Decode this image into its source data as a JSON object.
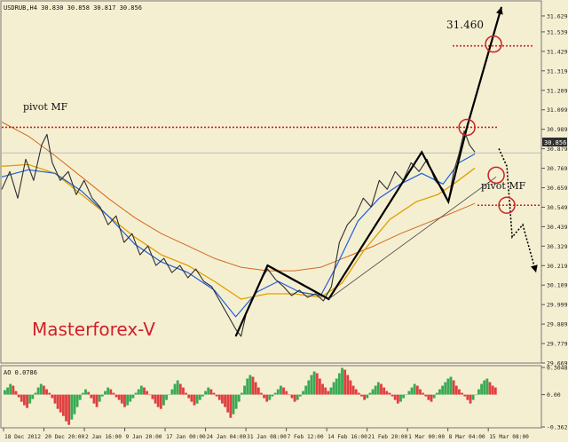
{
  "header": {
    "symbol_label": "USDRUB,H4  30.830 30.858 30.817 30.856"
  },
  "watermark": {
    "text": "Masterforex-V",
    "color": "#d0202a"
  },
  "colors": {
    "background": "#f5efd2",
    "price_line": "#2e2e2e",
    "ma_fast": "#1e5fd8",
    "ma_mid": "#e0a000",
    "ma_slow": "#d2691e",
    "pivot": "#cc2222",
    "ao_up": "#3aaa55",
    "ao_down": "#e04040"
  },
  "chart_data": [
    {
      "type": "line",
      "panel": "price",
      "y_axis_ticks": [
        "31.629",
        "31.539",
        "31.429",
        "31.319",
        "31.209",
        "31.099",
        "30.989",
        "30.879",
        "30.769",
        "30.659",
        "30.549",
        "30.439",
        "30.329",
        "30.219",
        "30.109",
        "29.999",
        "29.889",
        "29.779",
        "29.669"
      ],
      "ylim": [
        29.669,
        31.704
      ],
      "current_price": "30.856",
      "x_axis_ticks": [
        "18 Dec 2012",
        "20 Dec 20:00",
        "2 Jan 16:00",
        "9 Jan 20:00",
        "17 Jan 00:00",
        "24 Jan 04:00",
        "31 Jan 08:00",
        "7 Feb 12:00",
        "14 Feb 16:00",
        "21 Feb 20:00",
        "1 Mar 00:00",
        "8 Mar 04:00",
        "15 Mar 08:00"
      ],
      "series": [
        {
          "kind": "price",
          "points": [
            [
              0,
              30.65
            ],
            [
              3,
              30.75
            ],
            [
              6,
              30.6
            ],
            [
              9,
              30.82
            ],
            [
              12,
              30.7
            ],
            [
              15,
              30.9
            ],
            [
              17,
              30.96
            ],
            [
              19,
              30.8
            ],
            [
              22,
              30.7
            ],
            [
              25,
              30.75
            ],
            [
              28,
              30.62
            ],
            [
              31,
              30.7
            ],
            [
              34,
              30.6
            ],
            [
              37,
              30.55
            ],
            [
              40,
              30.45
            ],
            [
              43,
              30.5
            ],
            [
              46,
              30.35
            ],
            [
              49,
              30.4
            ],
            [
              52,
              30.28
            ],
            [
              55,
              30.33
            ],
            [
              58,
              30.22
            ],
            [
              61,
              30.26
            ],
            [
              64,
              30.18
            ],
            [
              67,
              30.22
            ],
            [
              70,
              30.15
            ],
            [
              73,
              30.2
            ],
            [
              76,
              30.13
            ],
            [
              79,
              30.1
            ],
            [
              82,
              30.02
            ],
            [
              85,
              29.94
            ],
            [
              88,
              29.86
            ],
            [
              90,
              29.82
            ],
            [
              92,
              29.95
            ],
            [
              95,
              30.05
            ],
            [
              98,
              30.15
            ],
            [
              100,
              30.2
            ],
            [
              103,
              30.14
            ],
            [
              106,
              30.1
            ],
            [
              109,
              30.05
            ],
            [
              112,
              30.08
            ],
            [
              115,
              30.04
            ],
            [
              118,
              30.06
            ],
            [
              121,
              30.02
            ],
            [
              124,
              30.1
            ],
            [
              127,
              30.35
            ],
            [
              130,
              30.45
            ],
            [
              133,
              30.5
            ],
            [
              136,
              30.6
            ],
            [
              139,
              30.55
            ],
            [
              142,
              30.7
            ],
            [
              145,
              30.65
            ],
            [
              148,
              30.75
            ],
            [
              151,
              30.7
            ],
            [
              154,
              30.8
            ],
            [
              157,
              30.75
            ],
            [
              160,
              30.82
            ],
            [
              163,
              30.7
            ],
            [
              166,
              30.65
            ],
            [
              168,
              30.58
            ],
            [
              170,
              30.75
            ],
            [
              172,
              30.85
            ],
            [
              174,
              30.98
            ],
            [
              176,
              30.9
            ],
            [
              178,
              30.86
            ]
          ]
        },
        {
          "kind": "moving-average-fast",
          "points": [
            [
              0,
              30.72
            ],
            [
              10,
              30.76
            ],
            [
              20,
              30.74
            ],
            [
              30,
              30.64
            ],
            [
              40,
              30.5
            ],
            [
              50,
              30.34
            ],
            [
              60,
              30.24
            ],
            [
              70,
              30.18
            ],
            [
              80,
              30.08
            ],
            [
              88,
              29.93
            ],
            [
              96,
              30.07
            ],
            [
              104,
              30.13
            ],
            [
              112,
              30.07
            ],
            [
              120,
              30.05
            ],
            [
              126,
              30.22
            ],
            [
              134,
              30.47
            ],
            [
              142,
              30.6
            ],
            [
              150,
              30.68
            ],
            [
              158,
              30.74
            ],
            [
              166,
              30.68
            ],
            [
              172,
              30.8
            ],
            [
              178,
              30.85
            ]
          ]
        },
        {
          "kind": "moving-average-mid",
          "points": [
            [
              0,
              30.78
            ],
            [
              10,
              30.79
            ],
            [
              20,
              30.74
            ],
            [
              30,
              30.62
            ],
            [
              40,
              30.5
            ],
            [
              50,
              30.38
            ],
            [
              60,
              30.28
            ],
            [
              70,
              30.22
            ],
            [
              80,
              30.13
            ],
            [
              90,
              30.03
            ],
            [
              100,
              30.06
            ],
            [
              110,
              30.06
            ],
            [
              120,
              30.04
            ],
            [
              128,
              30.12
            ],
            [
              136,
              30.3
            ],
            [
              146,
              30.48
            ],
            [
              156,
              30.58
            ],
            [
              164,
              30.62
            ],
            [
              170,
              30.68
            ],
            [
              178,
              30.77
            ]
          ]
        },
        {
          "kind": "moving-average-slow",
          "points": [
            [
              0,
              31.03
            ],
            [
              10,
              30.95
            ],
            [
              20,
              30.84
            ],
            [
              30,
              30.72
            ],
            [
              40,
              30.6
            ],
            [
              50,
              30.49
            ],
            [
              60,
              30.4
            ],
            [
              70,
              30.33
            ],
            [
              80,
              30.26
            ],
            [
              90,
              30.21
            ],
            [
              100,
              30.19
            ],
            [
              110,
              30.19
            ],
            [
              120,
              30.21
            ],
            [
              130,
              30.27
            ],
            [
              140,
              30.33
            ],
            [
              150,
              30.4
            ],
            [
              160,
              30.46
            ],
            [
              170,
              30.52
            ],
            [
              178,
              30.57
            ]
          ]
        }
      ],
      "annotations": {
        "pivot_lines": [
          {
            "label": "pivot MF",
            "value": 31.0
          },
          {
            "label": "pivot MF",
            "value": 30.56
          }
        ],
        "target_label": "31.460",
        "target_value": 31.46,
        "zigzag": [
          [
            88,
            29.82
          ],
          [
            100,
            30.22
          ],
          [
            123,
            30.03
          ],
          [
            158,
            30.86
          ],
          [
            168,
            30.58
          ],
          [
            175,
            31.0
          ]
        ],
        "forecast_up": [
          [
            175,
            31.0
          ],
          [
            188,
            31.68
          ]
        ],
        "forecast_down": [
          [
            187,
            30.88
          ],
          [
            190,
            30.78
          ],
          [
            192,
            30.38
          ],
          [
            196,
            30.45
          ],
          [
            201,
            30.18
          ]
        ],
        "circles": [
          [
            175,
            31.0
          ],
          [
            185,
            31.47
          ],
          [
            186,
            30.73
          ],
          [
            190,
            30.56
          ]
        ]
      }
    },
    {
      "type": "bar",
      "panel": "awesome-oscillator",
      "title": "AO 0.0786",
      "y_axis_ticks": [
        "0.3048",
        "0.00",
        "-0.3625"
      ],
      "ylim": [
        -0.3625,
        0.3048
      ],
      "values": [
        0.05,
        0.08,
        0.12,
        0.1,
        0.04,
        -0.03,
        -0.08,
        -0.12,
        -0.15,
        -0.1,
        -0.05,
        0.02,
        0.08,
        0.12,
        0.1,
        0.06,
        0.02,
        -0.04,
        -0.1,
        -0.16,
        -0.2,
        -0.24,
        -0.3,
        -0.34,
        -0.28,
        -0.22,
        -0.14,
        -0.06,
        0.02,
        0.06,
        0.03,
        -0.04,
        -0.1,
        -0.14,
        -0.08,
        -0.02,
        0.04,
        0.08,
        0.06,
        0.02,
        -0.03,
        -0.06,
        -0.1,
        -0.14,
        -0.12,
        -0.08,
        -0.04,
        0.02,
        0.06,
        0.1,
        0.08,
        0.04,
        0.0,
        -0.05,
        -0.1,
        -0.14,
        -0.16,
        -0.12,
        -0.06,
        0.0,
        0.06,
        0.12,
        0.16,
        0.12,
        0.08,
        0.02,
        -0.04,
        -0.08,
        -0.12,
        -0.1,
        -0.06,
        -0.02,
        0.04,
        0.08,
        0.06,
        0.02,
        -0.02,
        -0.06,
        -0.1,
        -0.14,
        -0.2,
        -0.26,
        -0.22,
        -0.16,
        -0.08,
        0.02,
        0.1,
        0.18,
        0.22,
        0.2,
        0.14,
        0.08,
        0.02,
        -0.04,
        -0.08,
        -0.06,
        -0.02,
        0.02,
        0.06,
        0.1,
        0.08,
        0.04,
        0.0,
        -0.04,
        -0.08,
        -0.06,
        -0.02,
        0.04,
        0.1,
        0.16,
        0.22,
        0.26,
        0.24,
        0.18,
        0.12,
        0.08,
        0.04,
        0.08,
        0.14,
        0.18,
        0.24,
        0.3,
        0.28,
        0.22,
        0.16,
        0.1,
        0.06,
        0.02,
        -0.02,
        -0.06,
        -0.04,
        0.02,
        0.06,
        0.1,
        0.14,
        0.12,
        0.08,
        0.04,
        0.02,
        -0.02,
        -0.06,
        -0.1,
        -0.08,
        -0.04,
        0.0,
        0.04,
        0.08,
        0.12,
        0.1,
        0.06,
        0.02,
        -0.02,
        -0.06,
        -0.08,
        -0.04,
        0.02,
        0.06,
        0.1,
        0.14,
        0.18,
        0.2,
        0.16,
        0.1,
        0.06,
        0.02,
        -0.02,
        -0.06,
        -0.1,
        -0.06,
        0.0,
        0.06,
        0.12,
        0.16,
        0.18,
        0.14,
        0.1,
        0.08
      ]
    }
  ]
}
